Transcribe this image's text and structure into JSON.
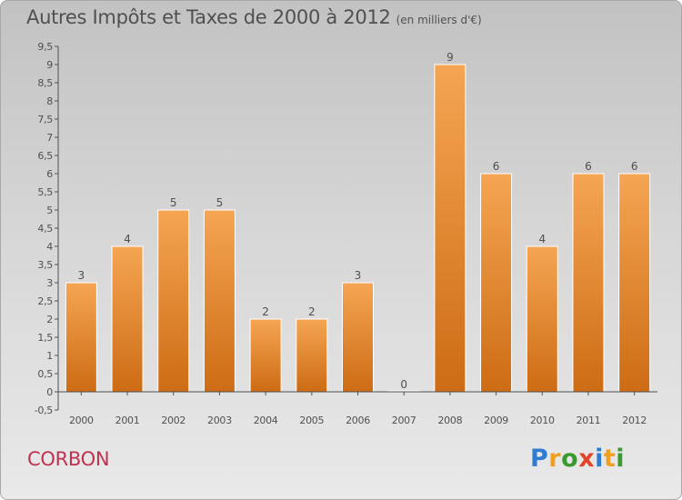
{
  "header": {
    "title": "Autres Impôts et Taxes de 2000 à 2012",
    "subtitle": "(en milliers d'€)"
  },
  "commune": "CORBON",
  "logo": {
    "text": "Proxiti",
    "letter_colors": [
      "#2e7bd0",
      "#f0a020",
      "#3a9a30",
      "#e0452a",
      "#2e7bd0",
      "#f0a020",
      "#3a9a30"
    ]
  },
  "colors": {
    "bar_top": "#f5a553",
    "bar_bottom": "#cd6c14",
    "bar_edge": "#ffffff",
    "axis": "#505050",
    "text": "#505050"
  },
  "chart_data": {
    "type": "bar",
    "categories": [
      "2000",
      "2001",
      "2002",
      "2003",
      "2004",
      "2005",
      "2006",
      "2007",
      "2008",
      "2009",
      "2010",
      "2011",
      "2012"
    ],
    "values": [
      3,
      4,
      5,
      5,
      2,
      2,
      3,
      0,
      9,
      6,
      4,
      6,
      6
    ],
    "value_labels": [
      "3",
      "4",
      "5",
      "5",
      "2",
      "2",
      "3",
      "0",
      "9",
      "6",
      "4",
      "6",
      "6"
    ],
    "yticks": [
      "-0,5",
      "0",
      "0,5",
      "1",
      "1,5",
      "2",
      "2,5",
      "3",
      "3,5",
      "4",
      "4,5",
      "5",
      "5,5",
      "6",
      "6,5",
      "7",
      "7,5",
      "8",
      "8,5",
      "9",
      "9,5"
    ],
    "ylim": [
      -0.5,
      9.5
    ],
    "grid": false,
    "xlabel": "",
    "ylabel": ""
  }
}
